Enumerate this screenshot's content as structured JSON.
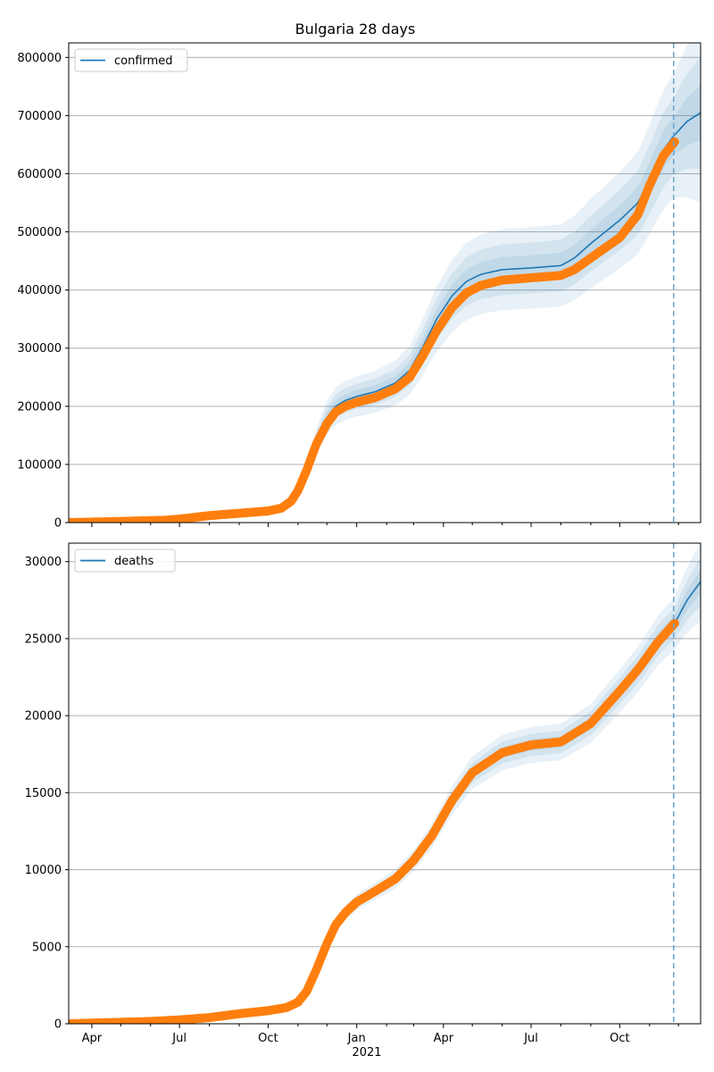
{
  "chart_data": {
    "type": "line",
    "title": "Bulgaria 28 days",
    "x_tick_labels": [
      "Apr",
      "Jul",
      "Oct",
      "Jan",
      "Apr",
      "Jul",
      "Oct"
    ],
    "x_year_label": "2021",
    "forecast_start": "2021-11-26",
    "panels": [
      {
        "name": "confirmed",
        "legend": "confirmed",
        "ylim": [
          0,
          825000
        ],
        "yticks": [
          0,
          100000,
          200000,
          300000,
          400000,
          500000,
          600000,
          700000,
          800000
        ],
        "observed_knots": [
          [
            "2020-03-08",
            0
          ],
          [
            "2020-05-01",
            2000
          ],
          [
            "2020-06-15",
            4000
          ],
          [
            "2020-07-01",
            6000
          ],
          [
            "2020-08-01",
            12000
          ],
          [
            "2020-09-01",
            16000
          ],
          [
            "2020-10-01",
            20000
          ],
          [
            "2020-10-15",
            25000
          ],
          [
            "2020-10-25",
            37000
          ],
          [
            "2020-11-01",
            55000
          ],
          [
            "2020-11-10",
            90000
          ],
          [
            "2020-11-20",
            135000
          ],
          [
            "2020-12-01",
            170000
          ],
          [
            "2020-12-10",
            190000
          ],
          [
            "2020-12-20",
            200000
          ],
          [
            "2021-01-01",
            207000
          ],
          [
            "2021-01-20",
            215000
          ],
          [
            "2021-02-10",
            230000
          ],
          [
            "2021-02-25",
            250000
          ],
          [
            "2021-03-10",
            285000
          ],
          [
            "2021-03-25",
            330000
          ],
          [
            "2021-04-10",
            370000
          ],
          [
            "2021-04-25",
            395000
          ],
          [
            "2021-05-10",
            408000
          ],
          [
            "2021-06-01",
            417000
          ],
          [
            "2021-07-01",
            421000
          ],
          [
            "2021-08-01",
            425000
          ],
          [
            "2021-08-15",
            435000
          ],
          [
            "2021-09-01",
            455000
          ],
          [
            "2021-10-01",
            490000
          ],
          [
            "2021-10-20",
            530000
          ],
          [
            "2021-11-01",
            580000
          ],
          [
            "2021-11-15",
            630000
          ],
          [
            "2021-11-27",
            655000
          ]
        ],
        "model_knots": [
          [
            "2020-03-08",
            0
          ],
          [
            "2020-05-01",
            2000
          ],
          [
            "2020-06-15",
            4000
          ],
          [
            "2020-07-01",
            6000
          ],
          [
            "2020-08-01",
            12000
          ],
          [
            "2020-09-01",
            16000
          ],
          [
            "2020-10-01",
            20000
          ],
          [
            "2020-10-15",
            25000
          ],
          [
            "2020-10-25",
            37000
          ],
          [
            "2020-11-01",
            55000
          ],
          [
            "2020-11-10",
            90000
          ],
          [
            "2020-11-20",
            140000
          ],
          [
            "2020-12-01",
            180000
          ],
          [
            "2020-12-10",
            200000
          ],
          [
            "2020-12-20",
            210000
          ],
          [
            "2021-01-01",
            217000
          ],
          [
            "2021-01-20",
            225000
          ],
          [
            "2021-02-10",
            240000
          ],
          [
            "2021-02-25",
            262000
          ],
          [
            "2021-03-10",
            300000
          ],
          [
            "2021-03-25",
            350000
          ],
          [
            "2021-04-10",
            390000
          ],
          [
            "2021-04-25",
            415000
          ],
          [
            "2021-05-10",
            427000
          ],
          [
            "2021-06-01",
            435000
          ],
          [
            "2021-07-01",
            438000
          ],
          [
            "2021-08-01",
            442000
          ],
          [
            "2021-08-15",
            455000
          ],
          [
            "2021-09-01",
            480000
          ],
          [
            "2021-10-01",
            520000
          ],
          [
            "2021-10-20",
            550000
          ],
          [
            "2021-11-01",
            590000
          ],
          [
            "2021-11-15",
            640000
          ],
          [
            "2021-11-26",
            665000
          ],
          [
            "2021-12-10",
            690000
          ],
          [
            "2021-12-24",
            705000
          ]
        ],
        "band_widths_relative": [
          0.05,
          0.1,
          0.16
        ]
      },
      {
        "name": "deaths",
        "legend": "deaths",
        "ylim": [
          0,
          31200
        ],
        "yticks": [
          0,
          5000,
          10000,
          15000,
          20000,
          25000,
          30000
        ],
        "observed_knots": [
          [
            "2020-03-08",
            0
          ],
          [
            "2020-06-01",
            150
          ],
          [
            "2020-07-01",
            250
          ],
          [
            "2020-08-01",
            400
          ],
          [
            "2020-09-01",
            650
          ],
          [
            "2020-10-01",
            850
          ],
          [
            "2020-10-20",
            1050
          ],
          [
            "2020-11-01",
            1400
          ],
          [
            "2020-11-10",
            2100
          ],
          [
            "2020-11-20",
            3500
          ],
          [
            "2020-12-01",
            5200
          ],
          [
            "2020-12-10",
            6400
          ],
          [
            "2020-12-20",
            7200
          ],
          [
            "2021-01-01",
            7900
          ],
          [
            "2021-01-20",
            8600
          ],
          [
            "2021-02-10",
            9400
          ],
          [
            "2021-03-01",
            10600
          ],
          [
            "2021-03-20",
            12200
          ],
          [
            "2021-04-10",
            14500
          ],
          [
            "2021-05-01",
            16300
          ],
          [
            "2021-06-01",
            17600
          ],
          [
            "2021-07-01",
            18100
          ],
          [
            "2021-08-01",
            18300
          ],
          [
            "2021-09-01",
            19500
          ],
          [
            "2021-10-01",
            21600
          ],
          [
            "2021-10-20",
            23000
          ],
          [
            "2021-11-10",
            24800
          ],
          [
            "2021-11-27",
            26000
          ]
        ],
        "model_knots": [
          [
            "2020-03-08",
            0
          ],
          [
            "2020-06-01",
            150
          ],
          [
            "2020-07-01",
            250
          ],
          [
            "2020-08-01",
            400
          ],
          [
            "2020-09-01",
            650
          ],
          [
            "2020-10-01",
            850
          ],
          [
            "2020-10-20",
            1050
          ],
          [
            "2020-11-01",
            1400
          ],
          [
            "2020-11-10",
            2100
          ],
          [
            "2020-11-20",
            3500
          ],
          [
            "2020-12-01",
            5200
          ],
          [
            "2020-12-10",
            6400
          ],
          [
            "2020-12-20",
            7200
          ],
          [
            "2021-01-01",
            7900
          ],
          [
            "2021-01-20",
            8600
          ],
          [
            "2021-02-10",
            9400
          ],
          [
            "2021-03-01",
            10600
          ],
          [
            "2021-03-20",
            12200
          ],
          [
            "2021-04-10",
            14500
          ],
          [
            "2021-05-01",
            16300
          ],
          [
            "2021-06-01",
            17600
          ],
          [
            "2021-07-01",
            18100
          ],
          [
            "2021-08-01",
            18300
          ],
          [
            "2021-09-01",
            19500
          ],
          [
            "2021-10-01",
            21600
          ],
          [
            "2021-10-20",
            23000
          ],
          [
            "2021-11-10",
            24900
          ],
          [
            "2021-11-27",
            26000
          ],
          [
            "2021-12-10",
            27500
          ],
          [
            "2021-12-24",
            28700
          ]
        ],
        "band_widths_relative": [
          0.02,
          0.04,
          0.065
        ]
      }
    ],
    "colors": {
      "observed": "#ff7f0e",
      "model": "#1f77b4",
      "band": "#1f77b4",
      "forecast_line": "#6aa3cd",
      "grid": "#b0b0b0"
    }
  }
}
